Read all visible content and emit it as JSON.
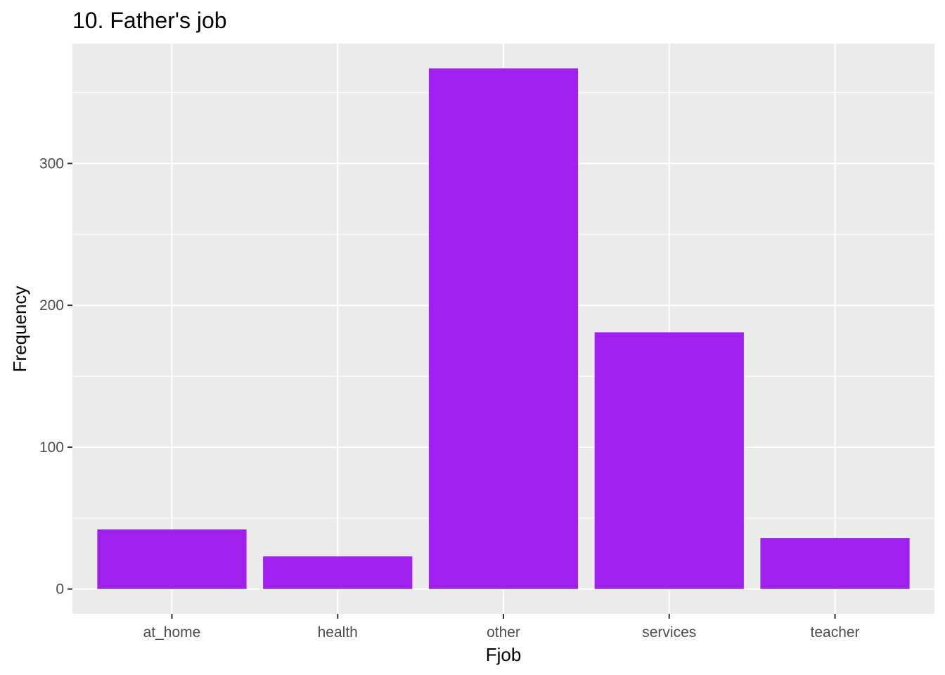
{
  "chart_data": {
    "type": "bar",
    "title": "10. Father's job",
    "xlabel": "Fjob",
    "ylabel": "Frequency",
    "categories": [
      "at_home",
      "health",
      "other",
      "services",
      "teacher"
    ],
    "values": [
      42,
      23,
      367,
      181,
      36
    ],
    "ylim": [
      -17.5,
      384.5
    ],
    "yticks": [
      0,
      100,
      200,
      300
    ],
    "grid": true,
    "legend": "none",
    "colors": {
      "bar": "#A020F0",
      "panel_background": "#EBEBEB",
      "grid_line": "#FFFFFF",
      "tick_text": "#4D4D4D",
      "tick_mark": "#333333"
    }
  }
}
